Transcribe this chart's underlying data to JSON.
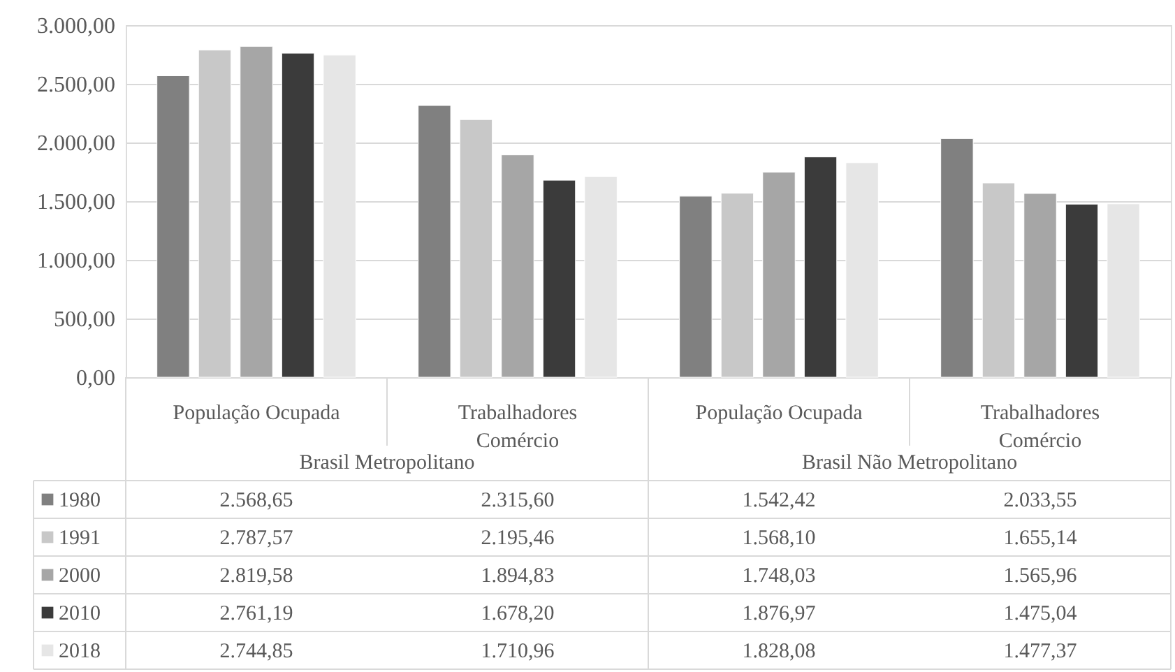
{
  "chart_data": {
    "type": "bar",
    "categories": [
      "População Ocupada",
      "Trabalhadores Comércio",
      "População Ocupada",
      "Trabalhadores Comércio"
    ],
    "annotations": [
      "Brasil Metropolitano",
      "Brasil Não Metropolitano"
    ],
    "ylim": [
      0,
      3000
    ],
    "yticks": [
      {
        "value": 0,
        "label": "0,00"
      },
      {
        "value": 500,
        "label": "500,00"
      },
      {
        "value": 1000,
        "label": "1.000,00"
      },
      {
        "value": 1500,
        "label": "1.500,00"
      },
      {
        "value": 2000,
        "label": "2.000,00"
      },
      {
        "value": 2500,
        "label": "2.500,00"
      },
      {
        "value": 3000,
        "label": "3.000,00"
      }
    ],
    "grid": "y",
    "legend": "bottom",
    "series": [
      {
        "name": "1980",
        "color": "#808080",
        "values": [
          2568.65,
          2315.6,
          1542.42,
          2033.55
        ],
        "value_labels": [
          "2.568,65",
          "2.315,60",
          "1.542,42",
          "2.033,55"
        ]
      },
      {
        "name": "1991",
        "color": "#c8c8c8",
        "values": [
          2787.57,
          2195.46,
          1568.1,
          1655.14
        ],
        "value_labels": [
          "2.787,57",
          "2.195,46",
          "1.568,10",
          "1.655,14"
        ]
      },
      {
        "name": "2000",
        "color": "#a6a6a6",
        "values": [
          2819.58,
          1894.83,
          1748.03,
          1565.96
        ],
        "value_labels": [
          "2.819,58",
          "1.894,83",
          "1.748,03",
          "1.565,96"
        ]
      },
      {
        "name": "2010",
        "color": "#3b3b3b",
        "values": [
          2761.19,
          1678.2,
          1876.97,
          1475.04
        ],
        "value_labels": [
          "2.761,19",
          "1.678,20",
          "1.876,97",
          "1.475,04"
        ]
      },
      {
        "name": "2018",
        "color": "#e6e6e6",
        "values": [
          2744.85,
          1710.96,
          1828.08,
          1477.37
        ],
        "value_labels": [
          "2.744,85",
          "1.710,96",
          "1.828,08",
          "1.477,37"
        ]
      }
    ]
  }
}
